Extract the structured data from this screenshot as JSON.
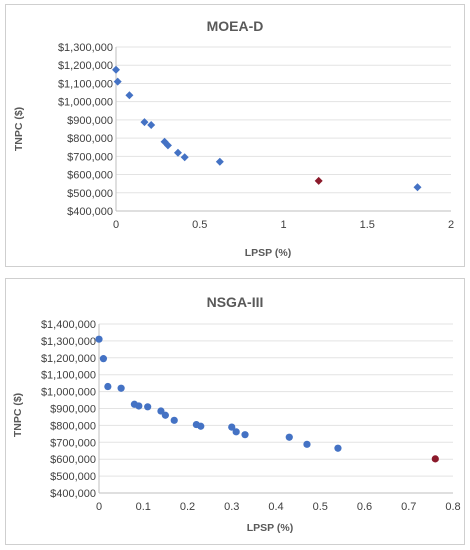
{
  "chart_data": [
    {
      "type": "scatter",
      "title": "MOEA-D",
      "xlabel": "LPSP (%)",
      "ylabel": "TNPC ($)",
      "xlim": [
        0,
        2
      ],
      "ylim": [
        400000,
        1300000
      ],
      "x_ticks": [
        "0",
        "0.5",
        "1",
        "1.5",
        "2"
      ],
      "y_ticks": [
        "$400,000",
        "$500,000",
        "$600,000",
        "$700,000",
        "$800,000",
        "$900,000",
        "$1,000,000",
        "$1,100,000",
        "$1,200,000",
        "$1,300,000"
      ],
      "marker": "diamond",
      "series": [
        {
          "color": "#4472C4",
          "points": [
            {
              "x": 0.0,
              "y": 1175000
            },
            {
              "x": 0.01,
              "y": 1110000
            },
            {
              "x": 0.08,
              "y": 1035000
            },
            {
              "x": 0.17,
              "y": 888000
            },
            {
              "x": 0.21,
              "y": 872000
            },
            {
              "x": 0.29,
              "y": 780000
            },
            {
              "x": 0.31,
              "y": 760000
            },
            {
              "x": 0.37,
              "y": 720000
            },
            {
              "x": 0.41,
              "y": 695000
            },
            {
              "x": 0.62,
              "y": 670000
            },
            {
              "x": 1.8,
              "y": 530000
            }
          ]
        },
        {
          "color": "#8B1A2B",
          "points": [
            {
              "x": 1.21,
              "y": 565000
            }
          ]
        }
      ]
    },
    {
      "type": "scatter",
      "title": "NSGA-III",
      "xlabel": "LPSP (%)",
      "ylabel": "TNPC ($)",
      "xlim": [
        0,
        0.8
      ],
      "ylim": [
        400000,
        1400000
      ],
      "x_ticks": [
        "0",
        "0.1",
        "0.2",
        "0.3",
        "0.4",
        "0.5",
        "0.6",
        "0.7",
        "0.8"
      ],
      "y_ticks": [
        "$400,000",
        "$500,000",
        "$600,000",
        "$700,000",
        "$800,000",
        "$900,000",
        "$1,000,000",
        "$1,100,000",
        "$1,200,000",
        "$1,300,000",
        "$1,400,000"
      ],
      "marker": "circle",
      "series": [
        {
          "color": "#4472C4",
          "points": [
            {
              "x": 0.0,
              "y": 1310000
            },
            {
              "x": 0.01,
              "y": 1195000
            },
            {
              "x": 0.02,
              "y": 1030000
            },
            {
              "x": 0.05,
              "y": 1020000
            },
            {
              "x": 0.08,
              "y": 925000
            },
            {
              "x": 0.09,
              "y": 915000
            },
            {
              "x": 0.11,
              "y": 910000
            },
            {
              "x": 0.14,
              "y": 885000
            },
            {
              "x": 0.15,
              "y": 860000
            },
            {
              "x": 0.17,
              "y": 830000
            },
            {
              "x": 0.22,
              "y": 805000
            },
            {
              "x": 0.23,
              "y": 795000
            },
            {
              "x": 0.3,
              "y": 790000
            },
            {
              "x": 0.31,
              "y": 762000
            },
            {
              "x": 0.33,
              "y": 745000
            },
            {
              "x": 0.43,
              "y": 730000
            },
            {
              "x": 0.47,
              "y": 688000
            },
            {
              "x": 0.54,
              "y": 665000
            }
          ]
        },
        {
          "color": "#8B1A2B",
          "points": [
            {
              "x": 0.76,
              "y": 602000
            }
          ]
        }
      ]
    }
  ]
}
